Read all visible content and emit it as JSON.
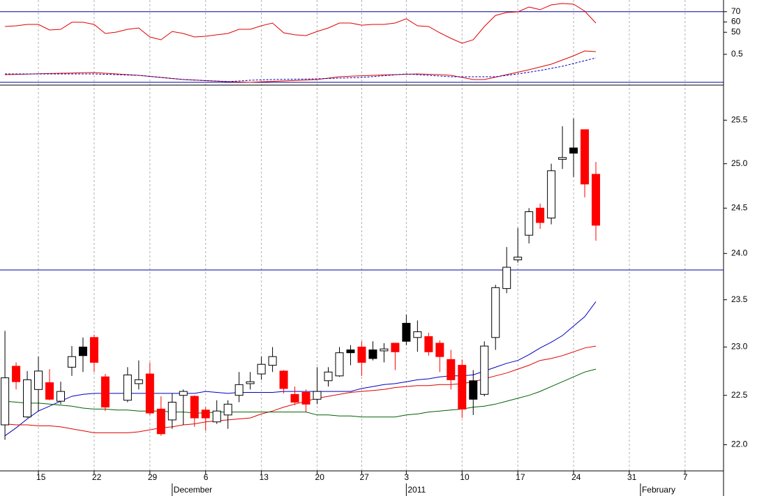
{
  "chart_data": [
    {
      "type": "line",
      "ylim": [
        0,
        80
      ],
      "yticks": [
        50,
        60,
        70
      ],
      "y2lim": [
        0,
        1.4
      ],
      "y2ticks": [
        0.5
      ],
      "hlines": [
        70
      ],
      "y2_hlines": [
        0
      ],
      "hline_color": "#0000a0",
      "series": [
        {
          "color": "#e00000",
          "axis": "y",
          "values": [
            55.6,
            56.3,
            57.6,
            57.6,
            52.2,
            52.9,
            59.7,
            59.7,
            57.6,
            48.8,
            50.2,
            52.9,
            54.2,
            45.4,
            42.7,
            50.8,
            48.8,
            45.4,
            46.1,
            47.5,
            48.8,
            52.9,
            52.9,
            56.3,
            59.0,
            49.5,
            47.5,
            46.8,
            50.8,
            54.2,
            59.0,
            59.0,
            56.9,
            57.6,
            57.6,
            59.0,
            63.1,
            56.3,
            55.6,
            49.5,
            44.1,
            39.3,
            42.7,
            55.6,
            66.4,
            69.2,
            69.8,
            74.6,
            71.9,
            76.6,
            78.0,
            77.3,
            70.5,
            59.0,
            null,
            null,
            null,
            null,
            null,
            null,
            null,
            null,
            null,
            null,
            null
          ]
        },
        {
          "color": "#e00000",
          "axis": "y2",
          "values": [
            0.154,
            0.159,
            0.164,
            0.168,
            0.173,
            0.178,
            0.182,
            0.186,
            0.19,
            0.178,
            0.166,
            0.154,
            0.142,
            0.124,
            0.107,
            0.089,
            0.071,
            0.062,
            0.053,
            0.045,
            0.036,
            0.03,
            0.024,
            0.032,
            0.04,
            0.047,
            0.055,
            0.063,
            0.071,
            0.095,
            0.119,
            0.127,
            0.135,
            0.142,
            0.15,
            0.154,
            0.16,
            0.166,
            0.16,
            0.154,
            0.142,
            0.107,
            0.071,
            0.071,
            0.112,
            0.154,
            0.196,
            0.237,
            0.285,
            0.332,
            0.403,
            0.474,
            0.558,
            0.546,
            null,
            null,
            null,
            null,
            null,
            null,
            null,
            null,
            null,
            null,
            null
          ]
        },
        {
          "color": "#0000c0",
          "axis": "y2",
          "line_style": "dashed",
          "values": [
            0.166,
            0.166,
            0.166,
            0.166,
            0.166,
            0.166,
            0.166,
            0.166,
            0.166,
            0.16,
            0.154,
            0.148,
            0.142,
            0.124,
            0.107,
            0.089,
            0.071,
            0.062,
            0.053,
            0.045,
            0.036,
            0.047,
            0.059,
            0.065,
            0.071,
            0.074,
            0.077,
            0.08,
            0.083,
            0.089,
            0.095,
            0.101,
            0.107,
            0.121,
            0.136,
            0.151,
            0.166,
            0.154,
            0.142,
            0.13,
            0.119,
            0.119,
            0.119,
            0.119,
            0.119,
            0.142,
            0.166,
            0.196,
            0.225,
            0.261,
            0.297,
            0.344,
            0.391,
            0.439,
            null,
            null,
            null,
            null,
            null,
            null,
            null,
            null,
            null,
            null,
            null
          ]
        }
      ]
    },
    {
      "type": "candlestick",
      "log_scale": true,
      "categories": [
        null,
        null,
        null,
        "15",
        null,
        null,
        null,
        null,
        "22",
        null,
        null,
        null,
        null,
        "29",
        null,
        null,
        null,
        null,
        "6",
        null,
        null,
        null,
        null,
        "13",
        null,
        null,
        null,
        null,
        "20",
        null,
        null,
        null,
        "27",
        null,
        null,
        null,
        "3",
        null,
        null,
        null,
        null,
        "10",
        null,
        null,
        null,
        null,
        "17",
        null,
        null,
        null,
        null,
        "24",
        null,
        null,
        null,
        null,
        "31",
        null,
        null,
        null,
        null,
        "7",
        null,
        null,
        null
      ],
      "months": [
        null,
        null,
        null,
        null,
        null,
        null,
        null,
        null,
        null,
        null,
        null,
        null,
        null,
        null,
        null,
        "December",
        null,
        null,
        null,
        null,
        null,
        null,
        null,
        null,
        null,
        null,
        null,
        null,
        null,
        null,
        null,
        null,
        null,
        null,
        null,
        null,
        "2011",
        null,
        null,
        null,
        null,
        null,
        null,
        null,
        null,
        null,
        null,
        null,
        null,
        null,
        null,
        null,
        null,
        null,
        null,
        null,
        null,
        "February",
        null,
        null,
        null,
        null,
        null,
        null,
        null
      ],
      "ylim": [
        21.74,
        25.91
      ],
      "yticks": [
        {
          "value": 22,
          "label": "22.0"
        },
        22.5,
        {
          "value": 23,
          "label": "23.0"
        },
        23.5,
        {
          "value": 24,
          "label": "24.0"
        },
        24.5,
        {
          "value": 25,
          "label": "25.0"
        },
        25.5
      ],
      "grid": true,
      "hlines": [
        23.82
      ],
      "hline_color": "#0000a0",
      "open": [
        22.2,
        22.8,
        22.28,
        22.56,
        22.63,
        22.44,
        22.79,
        23.0,
        23.1,
        22.69,
        null,
        22.45,
        22.62,
        22.72,
        22.36,
        22.25,
        22.5,
        22.49,
        22.35,
        22.23,
        22.3,
        22.5,
        22.62,
        22.72,
        22.81,
        22.75,
        22.51,
        22.53,
        22.46,
        22.65,
        22.7,
        22.97,
        23.0,
        22.97,
        22.98,
        23.04,
        23.25,
        23.1,
        23.11,
        23.04,
        22.87,
        22.81,
        22.65,
        22.51,
        23.1,
        23.62,
        23.93,
        24.2,
        24.5,
        24.39,
        25.05,
        25.18,
        25.39,
        24.88,
        null,
        null,
        null,
        null,
        null,
        null,
        null,
        null,
        null,
        null,
        null
      ],
      "high": [
        23.17,
        22.84,
        22.75,
        22.9,
        22.77,
        22.64,
        23.01,
        23.1,
        23.13,
        22.72,
        null,
        22.79,
        22.86,
        22.84,
        22.49,
        22.52,
        22.56,
        22.5,
        22.38,
        22.45,
        22.45,
        22.74,
        22.74,
        22.9,
        23.0,
        22.76,
        22.59,
        22.56,
        22.79,
        22.79,
        23.0,
        23.02,
        23.06,
        23.06,
        23.04,
        23.04,
        23.34,
        23.28,
        23.15,
        23.07,
        22.97,
        22.87,
        22.76,
        23.06,
        23.66,
        24.07,
        24.28,
        24.5,
        24.55,
        25.0,
        25.43,
        25.52,
        25.39,
        25.02,
        null,
        null,
        null,
        null,
        null,
        null,
        null,
        null,
        null,
        null,
        null
      ],
      "low": [
        22.05,
        22.56,
        22.27,
        22.34,
        22.45,
        22.41,
        22.7,
        22.74,
        22.74,
        22.34,
        null,
        22.43,
        22.56,
        22.3,
        22.09,
        22.16,
        22.2,
        22.18,
        22.14,
        22.21,
        22.16,
        22.43,
        22.56,
        22.66,
        22.74,
        22.52,
        22.4,
        22.33,
        22.41,
        22.59,
        22.69,
        22.81,
        22.7,
        22.86,
        22.84,
        22.76,
        23.02,
        22.95,
        22.91,
        22.74,
        22.56,
        22.27,
        22.3,
        22.49,
        22.97,
        23.57,
        23.9,
        24.11,
        24.27,
        24.32,
        24.94,
        24.85,
        24.62,
        24.14,
        null,
        null,
        null,
        null,
        null,
        null,
        null,
        null,
        null,
        null,
        null
      ],
      "close": [
        22.68,
        22.64,
        22.66,
        22.75,
        22.46,
        22.54,
        22.9,
        22.91,
        22.84,
        22.38,
        null,
        22.71,
        22.66,
        22.32,
        22.11,
        22.43,
        22.54,
        22.27,
        22.27,
        22.34,
        22.41,
        22.61,
        22.64,
        22.82,
        22.9,
        22.57,
        22.43,
        22.41,
        22.54,
        22.74,
        22.94,
        22.94,
        22.84,
        22.88,
        22.96,
        22.95,
        23.06,
        23.16,
        22.95,
        22.9,
        22.66,
        22.36,
        22.46,
        23.01,
        23.63,
        23.85,
        23.96,
        24.46,
        24.34,
        24.92,
        25.07,
        25.12,
        24.77,
        24.31,
        null,
        null,
        null,
        null,
        null,
        null,
        null,
        null,
        null,
        null,
        null
      ],
      "candle_colors": [
        "#ffffff",
        "#ff0000",
        "#ffffff",
        "#ffffff",
        "#ff0000",
        "#ffffff",
        "#ffffff",
        "#000000",
        "#ff0000",
        "#ff0000",
        null,
        "#ffffff",
        "#ffffff",
        "#ff0000",
        "#ff0000",
        "#ffffff",
        "#ffffff",
        "#ff0000",
        "#ff0000",
        "#ffffff",
        "#ffffff",
        "#ffffff",
        "#ffffff",
        "#ffffff",
        "#ffffff",
        "#ff0000",
        "#ff0000",
        "#ff0000",
        "#ffffff",
        "#ffffff",
        "#ffffff",
        "#000000",
        "#ff0000",
        "#000000",
        "#ffffff",
        "#ff0000",
        "#000000",
        "#ffffff",
        "#ff0000",
        "#ff0000",
        "#ff0000",
        "#ff0000",
        "#000000",
        "#ffffff",
        "#ffffff",
        "#ffffff",
        "#ffffff",
        "#ffffff",
        "#ff0000",
        "#ffffff",
        "#ffffff",
        "#000000",
        "#ff0000",
        "#ff0000",
        null,
        null,
        null,
        null,
        null,
        null,
        null,
        null,
        null,
        null,
        null
      ],
      "series": [
        {
          "color": "#0000c0",
          "values": [
            22.09,
            22.17,
            22.26,
            22.34,
            22.39,
            22.44,
            22.49,
            22.51,
            22.52,
            22.52,
            22.52,
            22.52,
            22.52,
            22.52,
            22.52,
            22.52,
            22.52,
            22.52,
            22.54,
            22.53,
            22.52,
            22.53,
            22.53,
            22.53,
            22.53,
            22.54,
            22.54,
            22.54,
            22.54,
            22.54,
            22.54,
            22.54,
            22.57,
            22.59,
            22.61,
            22.62,
            22.64,
            22.66,
            22.67,
            22.69,
            22.7,
            22.7,
            22.71,
            22.75,
            22.79,
            22.83,
            22.86,
            22.92,
            22.99,
            23.05,
            23.12,
            23.22,
            23.32,
            23.48,
            null,
            null,
            null,
            null,
            null,
            null,
            null,
            null,
            null,
            null,
            null
          ]
        },
        {
          "color": "#e00000",
          "values": [
            22.21,
            22.2,
            22.2,
            22.19,
            22.19,
            22.18,
            22.16,
            22.14,
            22.12,
            22.12,
            22.12,
            22.12,
            22.13,
            22.15,
            22.17,
            22.18,
            22.2,
            22.21,
            22.23,
            22.24,
            22.25,
            22.26,
            22.27,
            22.31,
            22.34,
            22.38,
            22.41,
            22.44,
            22.47,
            22.49,
            22.51,
            22.53,
            22.54,
            22.55,
            22.56,
            22.58,
            22.59,
            22.6,
            22.6,
            22.61,
            22.61,
            22.62,
            22.64,
            22.67,
            22.7,
            22.73,
            22.77,
            22.81,
            22.86,
            22.88,
            22.91,
            22.95,
            22.99,
            23.01,
            null,
            null,
            null,
            null,
            null,
            null,
            null,
            null,
            null,
            null,
            null
          ]
        },
        {
          "color": "#006000",
          "values": [
            22.44,
            22.43,
            22.42,
            22.42,
            22.41,
            22.4,
            22.39,
            22.37,
            22.36,
            22.36,
            22.35,
            22.35,
            22.34,
            22.34,
            22.34,
            22.33,
            22.33,
            22.32,
            22.32,
            22.33,
            22.33,
            22.33,
            22.33,
            22.33,
            22.33,
            22.33,
            22.33,
            22.33,
            22.3,
            22.3,
            22.29,
            22.29,
            22.28,
            22.28,
            22.28,
            22.28,
            22.3,
            22.31,
            22.33,
            22.34,
            22.35,
            22.36,
            22.38,
            22.39,
            22.41,
            22.44,
            22.47,
            22.5,
            22.54,
            22.59,
            22.64,
            22.69,
            22.74,
            22.77,
            null,
            null,
            null,
            null,
            null,
            null,
            null,
            null,
            null,
            null,
            null
          ]
        }
      ]
    }
  ]
}
